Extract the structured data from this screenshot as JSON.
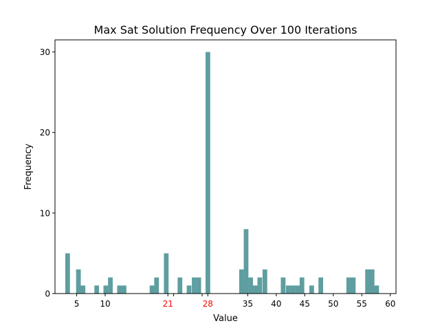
{
  "chart_data": {
    "type": "bar",
    "title": "Max Sat Solution Frequency Over 100 Iterations",
    "xlabel": "Value",
    "ylabel": "Frequency",
    "xlim": [
      1.2,
      61
    ],
    "ylim": [
      0,
      31.5
    ],
    "bin_width": 0.82,
    "bar_color": "#5f9ea0",
    "highlight_tick_color": "#ff0000",
    "x_ticks": [
      {
        "value": 5,
        "label": "5",
        "highlight": false
      },
      {
        "value": 10,
        "label": "10",
        "highlight": false
      },
      {
        "value": 21,
        "label": "21",
        "highlight": true
      },
      {
        "value": 28,
        "label": "28",
        "highlight": true
      },
      {
        "value": 35,
        "label": "35",
        "highlight": false
      },
      {
        "value": 40,
        "label": "40",
        "highlight": false
      },
      {
        "value": 45,
        "label": "45",
        "highlight": false
      },
      {
        "value": 50,
        "label": "50",
        "highlight": false
      },
      {
        "value": 55,
        "label": "55",
        "highlight": false
      },
      {
        "value": 60,
        "label": "60",
        "highlight": false
      }
    ],
    "x_minor_ticks": [
      22,
      27
    ],
    "y_ticks": [
      {
        "value": 0,
        "label": "0"
      },
      {
        "value": 10,
        "label": "10"
      },
      {
        "value": 20,
        "label": "20"
      },
      {
        "value": 30,
        "label": "30"
      }
    ],
    "bins": [
      {
        "x": 3.0,
        "count": 5
      },
      {
        "x": 4.9,
        "count": 3
      },
      {
        "x": 5.7,
        "count": 1
      },
      {
        "x": 8.1,
        "count": 1
      },
      {
        "x": 9.7,
        "count": 1
      },
      {
        "x": 10.5,
        "count": 2
      },
      {
        "x": 12.1,
        "count": 1
      },
      {
        "x": 12.9,
        "count": 1
      },
      {
        "x": 17.8,
        "count": 1
      },
      {
        "x": 18.6,
        "count": 2
      },
      {
        "x": 20.3,
        "count": 5
      },
      {
        "x": 22.7,
        "count": 2
      },
      {
        "x": 24.3,
        "count": 1
      },
      {
        "x": 25.2,
        "count": 2
      },
      {
        "x": 26.0,
        "count": 2
      },
      {
        "x": 27.6,
        "count": 30
      },
      {
        "x": 33.5,
        "count": 3
      },
      {
        "x": 34.3,
        "count": 8
      },
      {
        "x": 35.1,
        "count": 2
      },
      {
        "x": 35.9,
        "count": 1
      },
      {
        "x": 36.7,
        "count": 2
      },
      {
        "x": 37.6,
        "count": 3
      },
      {
        "x": 40.8,
        "count": 2
      },
      {
        "x": 41.7,
        "count": 1
      },
      {
        "x": 42.5,
        "count": 1
      },
      {
        "x": 43.3,
        "count": 1
      },
      {
        "x": 44.1,
        "count": 2
      },
      {
        "x": 45.8,
        "count": 1
      },
      {
        "x": 47.4,
        "count": 2
      },
      {
        "x": 52.3,
        "count": 2
      },
      {
        "x": 53.1,
        "count": 2
      },
      {
        "x": 55.6,
        "count": 3
      },
      {
        "x": 56.4,
        "count": 3
      },
      {
        "x": 57.2,
        "count": 1
      }
    ]
  }
}
